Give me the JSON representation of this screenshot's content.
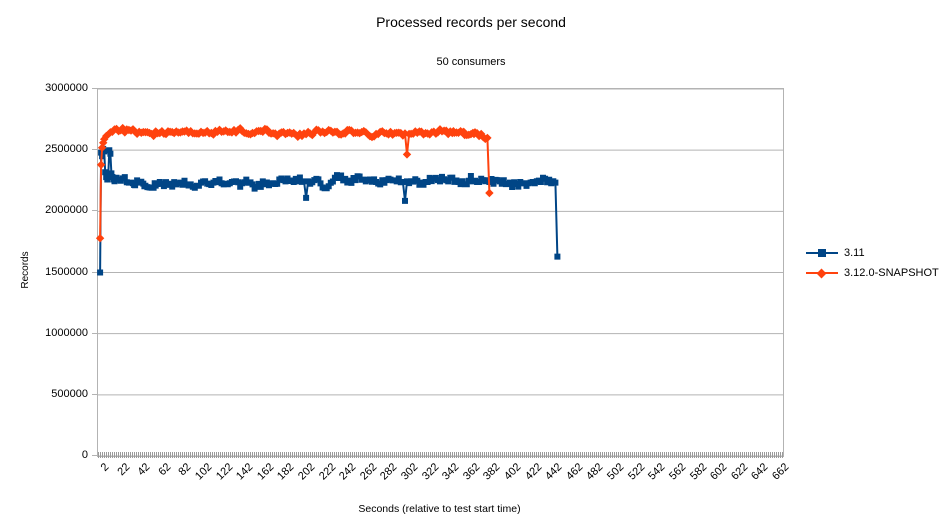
{
  "chart_data": {
    "type": "line",
    "title": "Processed records per second",
    "subtitle": "50 consumers",
    "xlabel": "Seconds  (relative to test start time)",
    "ylabel": "Records",
    "xlim": [
      0,
      665
    ],
    "ylim": [
      0,
      3000000
    ],
    "grid": "horizontal",
    "legend_position": "right",
    "y_ticks": [
      0,
      500000,
      1000000,
      1500000,
      2000000,
      2500000,
      3000000
    ],
    "x_ticks": [
      2,
      22,
      42,
      62,
      82,
      102,
      122,
      142,
      162,
      182,
      202,
      222,
      242,
      262,
      282,
      302,
      322,
      342,
      362,
      382,
      402,
      422,
      442,
      462,
      482,
      502,
      522,
      542,
      562,
      582,
      602,
      622,
      642,
      662
    ],
    "series": [
      {
        "name": "3.11",
        "color": "#004586",
        "marker": "square",
        "sample_step": 2,
        "noise_amplitude": 46000,
        "anchor_points": [
          [
            2,
            1500000
          ],
          [
            3,
            2480000
          ],
          [
            4,
            2450000
          ],
          [
            5,
            2510000
          ],
          [
            6,
            2490000
          ],
          [
            7,
            2320000
          ],
          [
            8,
            2280000
          ],
          [
            9,
            2260000
          ],
          [
            10,
            2300000
          ],
          [
            11,
            2500000
          ],
          [
            12,
            2470000
          ],
          [
            13,
            2310000
          ],
          [
            15,
            2260000
          ],
          [
            18,
            2275000
          ],
          [
            22,
            2250000
          ],
          [
            26,
            2280000
          ],
          [
            30,
            2235000
          ],
          [
            35,
            2215000
          ],
          [
            40,
            2235000
          ],
          [
            45,
            2205000
          ],
          [
            50,
            2195000
          ],
          [
            55,
            2230000
          ],
          [
            60,
            2240000
          ],
          [
            70,
            2225000
          ],
          [
            80,
            2235000
          ],
          [
            90,
            2220000
          ],
          [
            100,
            2235000
          ],
          [
            110,
            2215000
          ],
          [
            120,
            2230000
          ],
          [
            130,
            2240000
          ],
          [
            140,
            2230000
          ],
          [
            150,
            2220000
          ],
          [
            160,
            2245000
          ],
          [
            170,
            2230000
          ],
          [
            180,
            2255000
          ],
          [
            190,
            2240000
          ],
          [
            200,
            2245000
          ],
          [
            202,
            2110000
          ],
          [
            204,
            2245000
          ],
          [
            210,
            2255000
          ],
          [
            218,
            2195000
          ],
          [
            224,
            2205000
          ],
          [
            230,
            2275000
          ],
          [
            240,
            2265000
          ],
          [
            250,
            2255000
          ],
          [
            260,
            2245000
          ],
          [
            270,
            2240000
          ],
          [
            280,
            2255000
          ],
          [
            290,
            2245000
          ],
          [
            296,
            2240000
          ],
          [
            298,
            2085000
          ],
          [
            300,
            2245000
          ],
          [
            310,
            2250000
          ],
          [
            320,
            2240000
          ],
          [
            330,
            2255000
          ],
          [
            340,
            2245000
          ],
          [
            350,
            2240000
          ],
          [
            360,
            2250000
          ],
          [
            370,
            2240000
          ],
          [
            380,
            2240000
          ],
          [
            390,
            2245000
          ],
          [
            400,
            2235000
          ],
          [
            410,
            2240000
          ],
          [
            420,
            2235000
          ],
          [
            430,
            2240000
          ],
          [
            440,
            2230000
          ],
          [
            444,
            2235000
          ],
          [
            446,
            1630000
          ]
        ]
      },
      {
        "name": "3.12.0-SNAPSHOT",
        "color": "#FF420E",
        "marker": "diamond",
        "sample_step": 2,
        "noise_amplitude": 38000,
        "anchor_points": [
          [
            2,
            1780000
          ],
          [
            3,
            2380000
          ],
          [
            4,
            2520000
          ],
          [
            5,
            2560000
          ],
          [
            6,
            2590000
          ],
          [
            8,
            2615000
          ],
          [
            10,
            2630000
          ],
          [
            14,
            2650000
          ],
          [
            20,
            2655000
          ],
          [
            26,
            2645000
          ],
          [
            32,
            2660000
          ],
          [
            40,
            2650000
          ],
          [
            50,
            2640000
          ],
          [
            60,
            2640000
          ],
          [
            70,
            2650000
          ],
          [
            80,
            2645000
          ],
          [
            90,
            2655000
          ],
          [
            100,
            2650000
          ],
          [
            110,
            2640000
          ],
          [
            120,
            2650000
          ],
          [
            130,
            2645000
          ],
          [
            140,
            2655000
          ],
          [
            150,
            2640000
          ],
          [
            160,
            2650000
          ],
          [
            170,
            2638000
          ],
          [
            180,
            2648000
          ],
          [
            190,
            2640000
          ],
          [
            200,
            2636000
          ],
          [
            210,
            2646000
          ],
          [
            220,
            2640000
          ],
          [
            230,
            2650000
          ],
          [
            240,
            2636000
          ],
          [
            250,
            2642000
          ],
          [
            260,
            2646000
          ],
          [
            270,
            2632000
          ],
          [
            280,
            2638000
          ],
          [
            290,
            2642000
          ],
          [
            298,
            2636000
          ],
          [
            300,
            2465000
          ],
          [
            302,
            2632000
          ],
          [
            310,
            2642000
          ],
          [
            320,
            2636000
          ],
          [
            330,
            2646000
          ],
          [
            340,
            2632000
          ],
          [
            345,
            2655000
          ],
          [
            350,
            2642000
          ],
          [
            355,
            2650000
          ],
          [
            360,
            2626000
          ],
          [
            365,
            2632000
          ],
          [
            370,
            2616000
          ],
          [
            374,
            2606000
          ],
          [
            376,
            2592000
          ],
          [
            378,
            2600000
          ],
          [
            380,
            2150000
          ]
        ]
      }
    ],
    "colors": {
      "series_1": "#004586",
      "series_2": "#FF420E",
      "grid": "#b3b3b3",
      "text": "#000000",
      "background": "#ffffff"
    }
  }
}
